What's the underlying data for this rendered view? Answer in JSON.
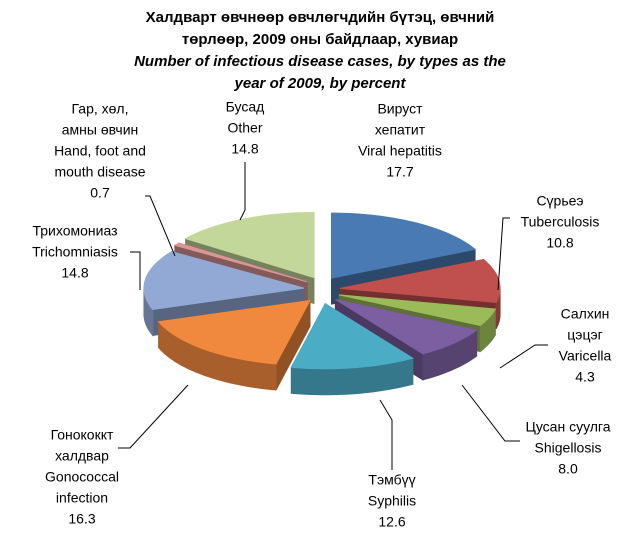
{
  "chart_data": {
    "type": "pie3d",
    "title": [
      "Халдварт өвчнөөр өвчлөгчдийн бүтэц, өвчний",
      "төрлөөр, 2009 оны  байдлаар, хувиар"
    ],
    "subtitle": [
      "Number of infectious disease cases, by types as the",
      "year of 2009, by percent"
    ],
    "categories": [
      [
        "Вируст",
        "хепатит",
        "Viral hepatitis"
      ],
      [
        "Сүрьеэ",
        "Tuberculosis"
      ],
      [
        "Салхин",
        "цэцэг",
        "Varicella"
      ],
      [
        "Цусан суулга",
        "Shigellosis"
      ],
      [
        "Тэмбүү",
        "Syphilis"
      ],
      [
        "Гонококкт",
        "халдвар",
        "Gonococcal",
        "infection"
      ],
      [
        "Трихомониаз",
        "Trichomniasis"
      ],
      [
        "Гар, хөл,",
        "амны өвчин",
        "Hand, foot and",
        "mouth disease"
      ],
      [
        "Бусад",
        "Other"
      ]
    ],
    "values": [
      17.7,
      10.8,
      4.3,
      8.0,
      12.6,
      16.3,
      14.8,
      0.7,
      14.8
    ],
    "value_labels": [
      "17.7",
      "10.8",
      "4.3",
      "8.0",
      "12.6",
      "16.3",
      "14.8",
      "0.7",
      "14.8"
    ],
    "colors": [
      "#4a7ab3",
      "#c0504d",
      "#9bbb59",
      "#7b5fa0",
      "#4bacc6",
      "#f0883e",
      "#93a9d5",
      "#d99694",
      "#c4d79b"
    ]
  }
}
